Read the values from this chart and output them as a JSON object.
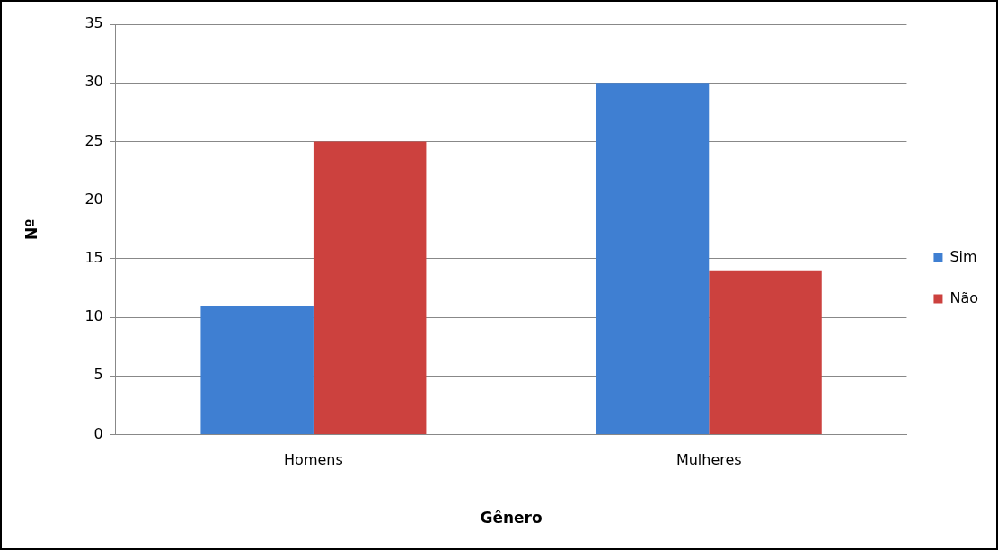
{
  "chart_data": {
    "type": "bar",
    "xlabel": "Gênero",
    "ylabel": "Nº",
    "categories": [
      "Homens",
      "Mulheres"
    ],
    "series": [
      {
        "name": "Sim",
        "color": "#3f7fd2",
        "values": [
          11,
          30
        ]
      },
      {
        "name": "Não",
        "color": "#cc413e",
        "values": [
          25,
          14
        ]
      }
    ],
    "ylim": [
      0,
      35
    ],
    "yticks": [
      0,
      5,
      10,
      15,
      20,
      25,
      30,
      35
    ],
    "grid": "y",
    "legend": "right"
  }
}
